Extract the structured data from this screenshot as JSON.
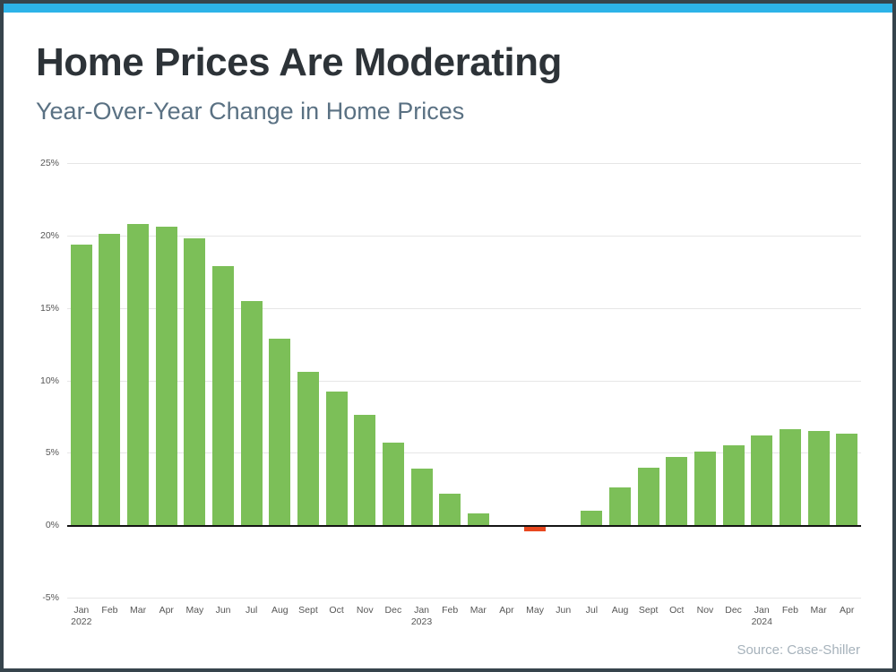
{
  "colors": {
    "frame": "#36444c",
    "accent_bar": "#2db3e8",
    "title_text": "#2d3338",
    "subtitle_text": "#5a7183",
    "positive_bar": "#7cbf58",
    "negative_bar": "#e8481f",
    "zero_line": "#141414",
    "gridline": "#e6e6e6",
    "source_text": "#a6b2bb"
  },
  "chart_data": {
    "type": "bar",
    "title": "Home Prices Are Moderating",
    "subtitle": "Year-Over-Year Change in Home Prices",
    "source": "Source: Case-Shiller",
    "xlabel": "",
    "ylabel": "",
    "ylim": [
      -5,
      25
    ],
    "ytick_step": 5,
    "ytick_suffix": "%",
    "grid": true,
    "legend": false,
    "categories": [
      "Jan",
      "Feb",
      "Mar",
      "Apr",
      "May",
      "Jun",
      "Jul",
      "Aug",
      "Sept",
      "Oct",
      "Nov",
      "Dec",
      "Jan",
      "Feb",
      "Mar",
      "Apr",
      "May",
      "Jun",
      "Jul",
      "Aug",
      "Sept",
      "Oct",
      "Nov",
      "Dec",
      "Jan",
      "Feb",
      "Mar",
      "Apr"
    ],
    "year_labels": [
      {
        "index": 0,
        "label": "2022"
      },
      {
        "index": 12,
        "label": "2023"
      },
      {
        "index": 24,
        "label": "2024"
      }
    ],
    "values": [
      19.4,
      20.1,
      20.8,
      20.6,
      19.8,
      17.9,
      15.5,
      12.9,
      10.6,
      9.2,
      7.6,
      5.7,
      3.9,
      2.2,
      0.8,
      0.0,
      -0.4,
      0.0,
      1.0,
      2.6,
      4.0,
      4.7,
      5.1,
      5.5,
      6.2,
      6.6,
      6.5,
      6.3
    ],
    "positive_color": "#7cbf58",
    "negative_color": "#e8481f"
  }
}
